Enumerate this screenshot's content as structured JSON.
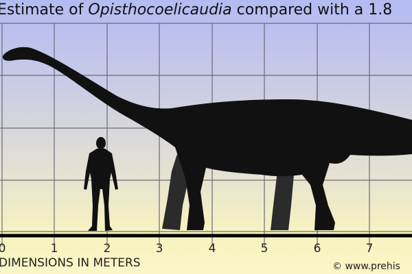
{
  "title": {
    "prefix": "Estimate of ",
    "taxon": "Opisthocoelicaudia",
    "suffix": " compared with a 1.8"
  },
  "axis": {
    "ticks": [
      "0",
      "1",
      "2",
      "3",
      "4",
      "5",
      "6",
      "7"
    ],
    "label": "DIMENSIONS IN METERS"
  },
  "credit": "© www.prehis",
  "colors": {
    "sky_top": "#b3bbf3",
    "ground": "#faf6c6",
    "silhouette": "#111111",
    "grid": "#6a6a7a"
  }
}
